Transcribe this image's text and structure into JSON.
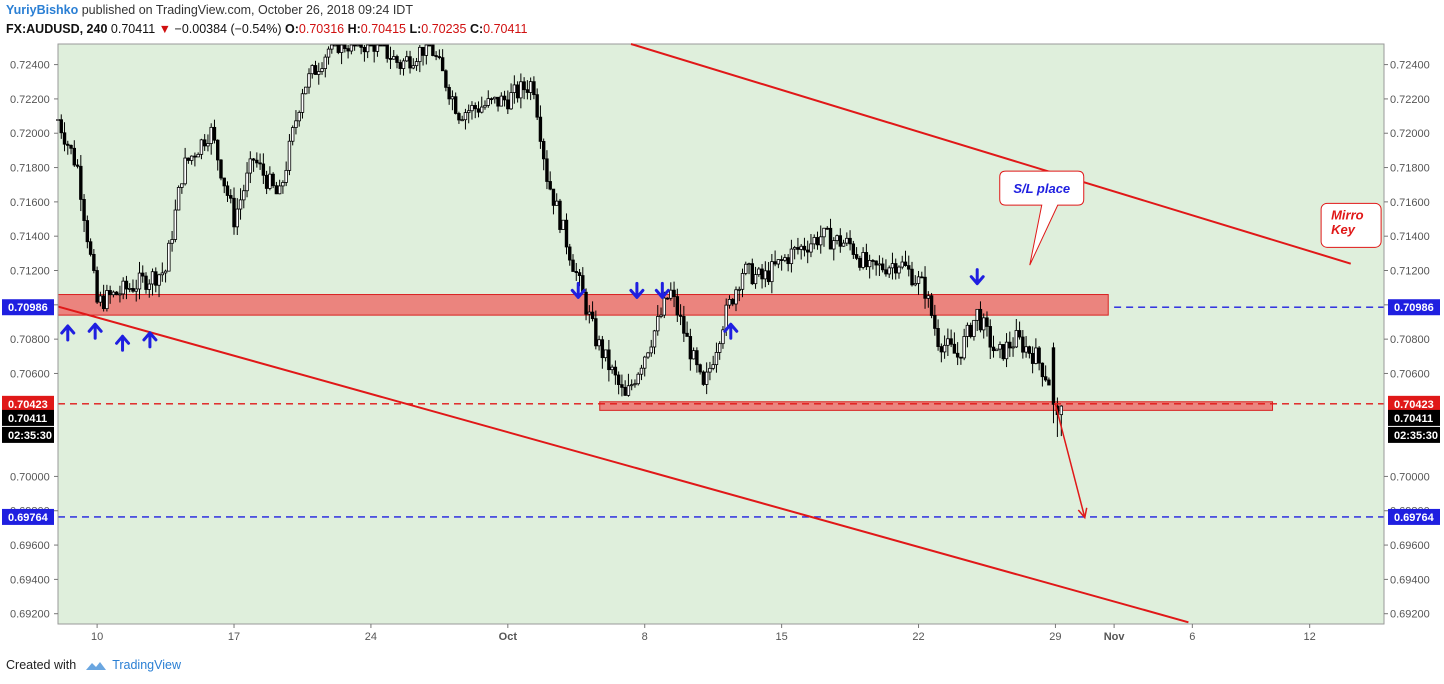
{
  "header": {
    "author": "YuriyBishko",
    "published": "published on TradingView.com, October 26, 2018 09:24 IDT",
    "symbol": "FX:AUDUSD, 240",
    "last": "0.70411",
    "change": "−0.00384 (−0.54%)",
    "open_label": "O:",
    "open": "0.70316",
    "high_label": "H:",
    "high": "0.70415",
    "low_label": "L:",
    "low": "0.70235",
    "close_label": "C:",
    "close": "0.70411"
  },
  "footer": {
    "created_with": "Created with",
    "brand": "TradingView"
  },
  "chart_data": {
    "type": "candlestick",
    "ylim": [
      0.6914,
      0.7252
    ],
    "y_ticks": [
      "0.72400",
      "0.72200",
      "0.72000",
      "0.71800",
      "0.71600",
      "0.71400",
      "0.71200",
      "0.71000",
      "0.70800",
      "0.70600",
      "0.70000",
      "0.69800",
      "0.69600",
      "0.69400",
      "0.69200"
    ],
    "y_ticks_value": [
      0.724,
      0.722,
      0.72,
      0.718,
      0.716,
      0.714,
      0.712,
      0.71,
      0.708,
      0.706,
      0.7,
      0.698,
      0.696,
      0.694,
      0.692
    ],
    "x_ticks": [
      "10",
      "17",
      "24",
      "Oct",
      "8",
      "15",
      "22",
      "29",
      "Nov",
      "6",
      "12"
    ],
    "x_ticks_day": [
      10,
      17,
      24,
      31,
      38,
      45,
      52,
      59,
      62,
      66,
      72
    ],
    "x_day_range": [
      8.0,
      75.8
    ],
    "price_tags": [
      {
        "label": "0.70986",
        "value": 0.70986,
        "color": "#1f1fe0"
      },
      {
        "label": "0.70423",
        "value": 0.70423,
        "color": "#e01818"
      },
      {
        "label": "0.70411",
        "value": 0.70411,
        "color": "#000000"
      },
      {
        "label": "0.69764",
        "value": 0.69764,
        "color": "#1f1fe0"
      }
    ],
    "countdown": "02:35:30",
    "zones": [
      {
        "name": "resistance-zone",
        "day_from": 8.0,
        "day_to": 61.7,
        "y_low": 0.7094,
        "y_high": 0.7106
      },
      {
        "name": "support-zone",
        "day_from": 35.7,
        "day_to": 70.1,
        "y_low": 0.70385,
        "y_high": 0.70435
      }
    ],
    "hlines": [
      {
        "value": 0.70986,
        "color": "#1f1fe0",
        "from_day": 62.0
      },
      {
        "value": 0.69764,
        "color": "#1f1fe0",
        "from_day": 8.0
      },
      {
        "value": 0.70423,
        "color": "#e01818",
        "from_day": 8.0
      }
    ],
    "trendlines": [
      {
        "d1": 37.3,
        "v1": 0.7252,
        "d2": 74.1,
        "v2": 0.7124
      },
      {
        "d1": 8.0,
        "v1": 0.7099,
        "d2": 65.8,
        "v2": 0.6915
      }
    ],
    "arrows_up": [
      {
        "day": 8.5,
        "value": 0.7083
      },
      {
        "day": 9.9,
        "value": 0.7084
      },
      {
        "day": 11.3,
        "value": 0.7077
      },
      {
        "day": 12.7,
        "value": 0.7079
      },
      {
        "day": 42.4,
        "value": 0.7084
      }
    ],
    "arrows_down": [
      {
        "day": 34.6,
        "value": 0.7109
      },
      {
        "day": 37.6,
        "value": 0.7109
      },
      {
        "day": 38.9,
        "value": 0.7109
      },
      {
        "day": 55.0,
        "value": 0.7117
      }
    ],
    "projection": {
      "d1": 59.0,
      "v1": 0.7042,
      "d2": 60.5,
      "v2": 0.6976
    },
    "notes": [
      {
        "text": "S/L place",
        "color": "#1f1fe0",
        "day": 58.3,
        "value": 0.7168
      },
      {
        "text": "Mirro",
        "color": "#e01818",
        "day": 73.3,
        "value": 0.7151
      },
      {
        "text": "Key",
        "color": "#e01818",
        "day": 73.3,
        "value": 0.7143
      }
    ],
    "anchors": [
      [
        8.0,
        0.7208
      ],
      [
        9.0,
        0.718
      ],
      [
        10.0,
        0.7101
      ],
      [
        12.0,
        0.7112
      ],
      [
        13.5,
        0.712
      ],
      [
        14.4,
        0.718
      ],
      [
        15.8,
        0.7202
      ],
      [
        17.0,
        0.715
      ],
      [
        18.0,
        0.7185
      ],
      [
        19.3,
        0.7162
      ],
      [
        20.5,
        0.7226
      ],
      [
        22.0,
        0.7252
      ],
      [
        24.3,
        0.7252
      ],
      [
        25.5,
        0.724
      ],
      [
        27.0,
        0.7252
      ],
      [
        28.5,
        0.7212
      ],
      [
        31.0,
        0.722
      ],
      [
        32.3,
        0.723
      ],
      [
        33.0,
        0.7175
      ],
      [
        34.5,
        0.7118
      ],
      [
        35.5,
        0.708
      ],
      [
        37.0,
        0.7045
      ],
      [
        38.7,
        0.709
      ],
      [
        39.3,
        0.7108
      ],
      [
        40.2,
        0.7078
      ],
      [
        41.0,
        0.705
      ],
      [
        42.0,
        0.709
      ],
      [
        43.0,
        0.712
      ],
      [
        44.0,
        0.7115
      ],
      [
        45.5,
        0.713
      ],
      [
        47.0,
        0.714
      ],
      [
        48.5,
        0.7135
      ],
      [
        49.5,
        0.712
      ],
      [
        51.0,
        0.7125
      ],
      [
        52.3,
        0.711
      ],
      [
        53.0,
        0.708
      ],
      [
        54.0,
        0.707
      ],
      [
        55.0,
        0.7095
      ],
      [
        56.0,
        0.707
      ],
      [
        57.0,
        0.708
      ],
      [
        58.0,
        0.707
      ],
      [
        58.7,
        0.7055
      ]
    ]
  }
}
